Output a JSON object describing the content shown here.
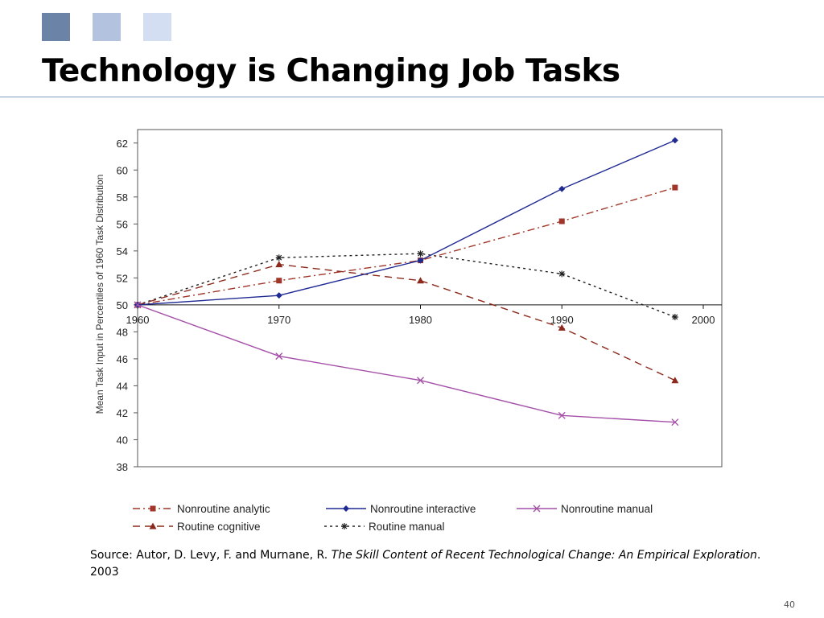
{
  "slide": {
    "title": "Technology is Changing Job Tasks",
    "page_number": "40",
    "source": {
      "prefix": "Source:  Autor, D. Levy, F. and Murnane, R. ",
      "work_title": "The Skill Content of Recent Technological Change: An Empirical Exploration",
      "suffix": ".  2003"
    },
    "colors": {
      "square_dark": "#6a83a6",
      "square_mid": "#b2c2df",
      "square_light": "#d4def3",
      "rule": "#7f9bbf"
    }
  },
  "chart_data": {
    "type": "line",
    "title": "",
    "xlabel": "",
    "ylabel": "Mean Task Input in Percentiles of 1960 Task Distribution",
    "x": [
      1960,
      1970,
      1980,
      1990,
      1998
    ],
    "x_ticks": [
      "1960",
      "1970",
      "1980",
      "1990",
      "2000"
    ],
    "xlim": [
      1960,
      2000
    ],
    "ylim": [
      38,
      63
    ],
    "y_ticks": [
      38,
      40,
      42,
      44,
      46,
      48,
      50,
      52,
      54,
      56,
      58,
      60,
      62
    ],
    "x_axis_at_y": 50,
    "grid": false,
    "legend_position": "bottom",
    "series": [
      {
        "name": "Nonroutine analytic",
        "values": [
          50,
          51.8,
          53.3,
          56.2,
          58.7
        ],
        "color": "#a0362a",
        "dash": "long-dash-dot",
        "marker": "square"
      },
      {
        "name": "Nonroutine interactive",
        "values": [
          50,
          50.7,
          53.3,
          58.6,
          62.2
        ],
        "color": "#1f2a93",
        "dash": "solid",
        "marker": "diamond"
      },
      {
        "name": "Nonroutine manual",
        "values": [
          50,
          46.2,
          44.4,
          41.8,
          41.3
        ],
        "color": "#a44fa8",
        "dash": "solid",
        "marker": "x"
      },
      {
        "name": "Routine cognitive",
        "values": [
          50,
          53.0,
          51.8,
          48.3,
          44.4
        ],
        "color": "#8b2a1c",
        "dash": "long-dash",
        "marker": "triangle"
      },
      {
        "name": "Routine manual",
        "values": [
          50,
          53.5,
          53.8,
          52.3,
          49.1
        ],
        "color": "#222222",
        "dash": "dotted",
        "marker": "asterisk"
      }
    ]
  }
}
